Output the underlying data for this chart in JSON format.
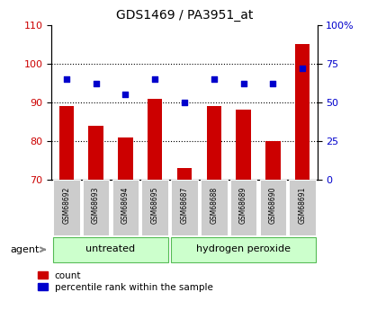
{
  "title": "GDS1469 / PA3951_at",
  "samples": [
    "GSM68692",
    "GSM68693",
    "GSM68694",
    "GSM68695",
    "GSM68687",
    "GSM68688",
    "GSM68689",
    "GSM68690",
    "GSM68691"
  ],
  "counts": [
    89,
    84,
    81,
    91,
    73,
    89,
    88,
    80,
    105
  ],
  "percentile_ranks": [
    65,
    62,
    55,
    65,
    50,
    65,
    62,
    62,
    72
  ],
  "bar_color": "#cc0000",
  "square_color": "#0000cc",
  "ylim_left": [
    70,
    110
  ],
  "ylim_right": [
    0,
    100
  ],
  "yticks_left": [
    70,
    80,
    90,
    100,
    110
  ],
  "yticks_right": [
    0,
    25,
    50,
    75,
    100
  ],
  "ytick_labels_right": [
    "0",
    "25",
    "50",
    "75",
    "100%"
  ],
  "groups": [
    {
      "label": "untreated",
      "start": 0,
      "end": 4
    },
    {
      "label": "hydrogen peroxide",
      "start": 4,
      "end": 9
    }
  ],
  "group_color_light": "#ccffcc",
  "agent_label": "agent",
  "legend_count_label": "count",
  "legend_percentile_label": "percentile rank within the sample",
  "background_color": "#ffffff",
  "tick_label_area_color": "#cccccc"
}
